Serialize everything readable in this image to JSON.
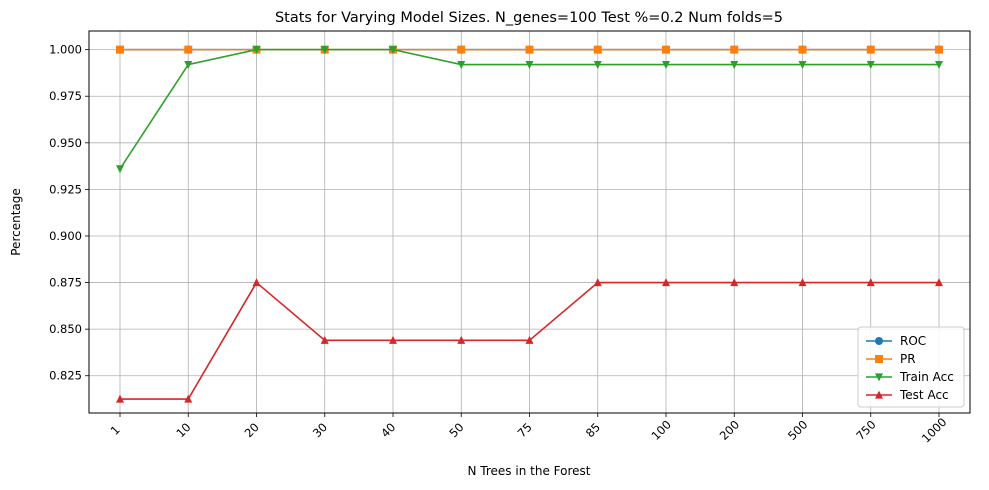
{
  "chart_data": {
    "type": "line",
    "title": "Stats for Varying Model Sizes. N_genes=100 Test %=0.2 Num folds=5",
    "xlabel": "N Trees in the Forest",
    "ylabel": "Percentage",
    "categories": [
      "1",
      "10",
      "20",
      "30",
      "40",
      "50",
      "75",
      "85",
      "100",
      "200",
      "500",
      "750",
      "1000"
    ],
    "ylim": [
      0.805,
      1.01
    ],
    "yticks": [
      "0.825",
      "0.850",
      "0.875",
      "0.900",
      "0.925",
      "0.950",
      "0.975",
      "1.000"
    ],
    "grid": true,
    "legend_position": "bottom-right",
    "series": [
      {
        "name": "ROC",
        "color": "#1f77b4",
        "marker": "circle",
        "values": [
          1.0,
          1.0,
          1.0,
          1.0,
          1.0,
          1.0,
          1.0,
          1.0,
          1.0,
          1.0,
          1.0,
          1.0,
          1.0
        ]
      },
      {
        "name": "PR",
        "color": "#ff7f0e",
        "marker": "square",
        "values": [
          1.0,
          1.0,
          1.0,
          1.0,
          1.0,
          1.0,
          1.0,
          1.0,
          1.0,
          1.0,
          1.0,
          1.0,
          1.0
        ]
      },
      {
        "name": "Train Acc",
        "color": "#2ca02c",
        "marker": "triangle-down",
        "values": [
          0.936,
          0.992,
          1.0,
          1.0,
          1.0,
          0.992,
          0.992,
          0.992,
          0.992,
          0.992,
          0.992,
          0.992,
          0.992
        ]
      },
      {
        "name": "Test Acc",
        "color": "#d62728",
        "marker": "triangle-up",
        "values": [
          0.8125,
          0.8125,
          0.875,
          0.844,
          0.844,
          0.844,
          0.844,
          0.875,
          0.875,
          0.875,
          0.875,
          0.875,
          0.875
        ]
      }
    ]
  }
}
